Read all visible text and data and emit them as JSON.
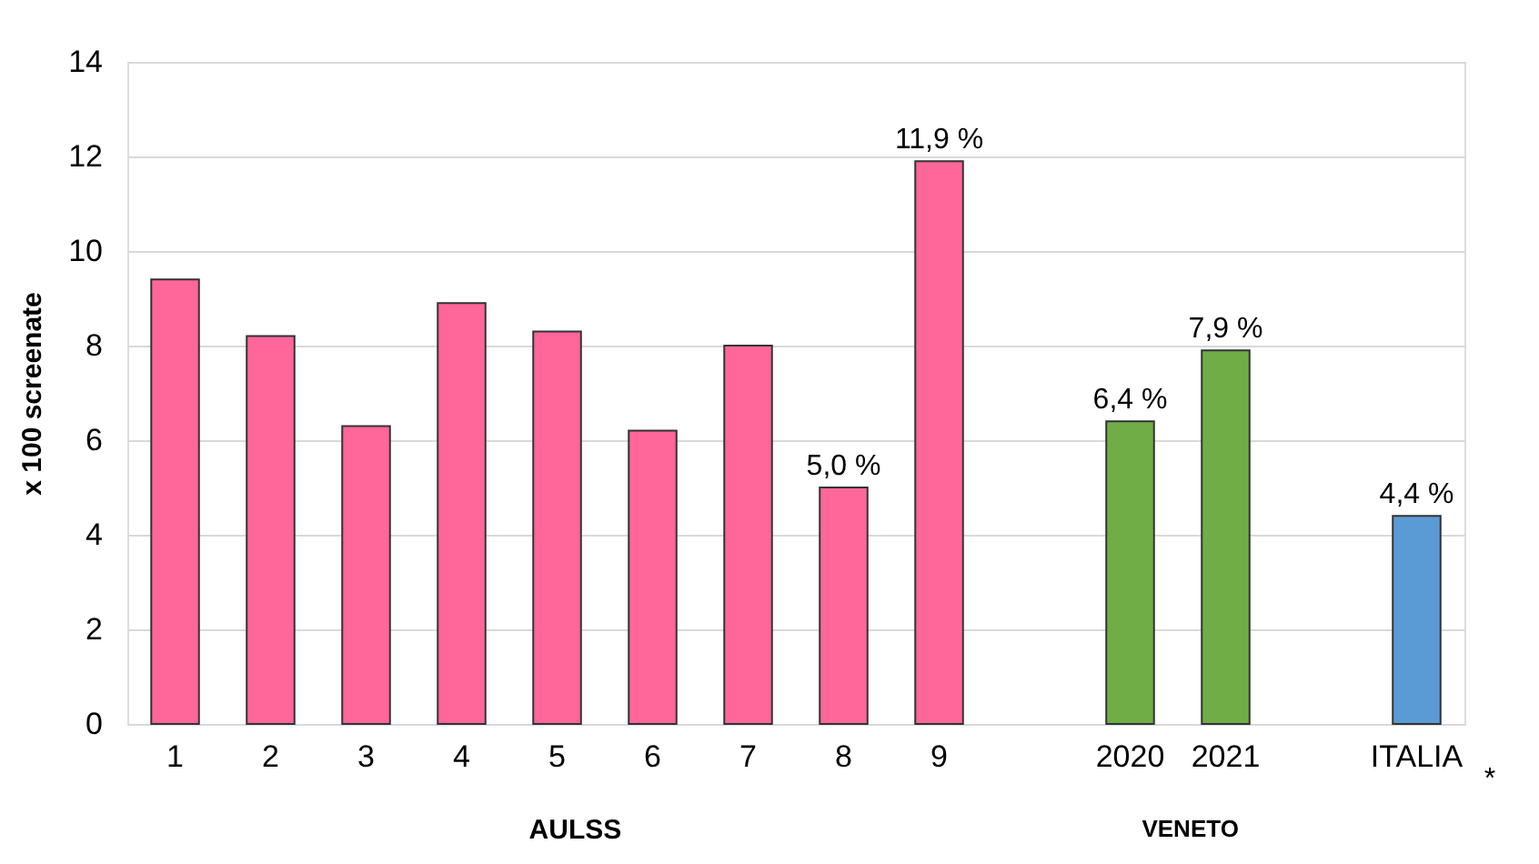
{
  "chart_data": {
    "type": "bar",
    "ylabel": "x 100 screenate",
    "categories": [
      "1",
      "2",
      "3",
      "4",
      "5",
      "6",
      "7",
      "8",
      "9",
      null,
      "2020",
      "2021",
      null,
      "ITALIA"
    ],
    "values": [
      9.4,
      8.2,
      6.3,
      8.9,
      8.3,
      6.2,
      8.0,
      5.0,
      11.9,
      null,
      6.4,
      7.9,
      null,
      4.4
    ],
    "colors": [
      "#ff6699",
      "#ff6699",
      "#ff6699",
      "#ff6699",
      "#ff6699",
      "#ff6699",
      "#ff6699",
      "#ff6699",
      "#ff6699",
      "#ffffff",
      "#70ad47",
      "#70ad47",
      "#ffffff",
      "#5b9bd5"
    ],
    "value_labels": [
      null,
      null,
      null,
      null,
      null,
      null,
      null,
      "5,0 %",
      "11,9 %",
      null,
      "6,4 %",
      "7,9 %",
      null,
      "4,4 %"
    ],
    "ylim": [
      0,
      14
    ],
    "yticks": [
      0,
      2,
      4,
      6,
      8,
      10,
      12,
      14
    ],
    "grid": "y",
    "annotations": [
      "AULSS",
      "VENETO",
      "*"
    ]
  }
}
